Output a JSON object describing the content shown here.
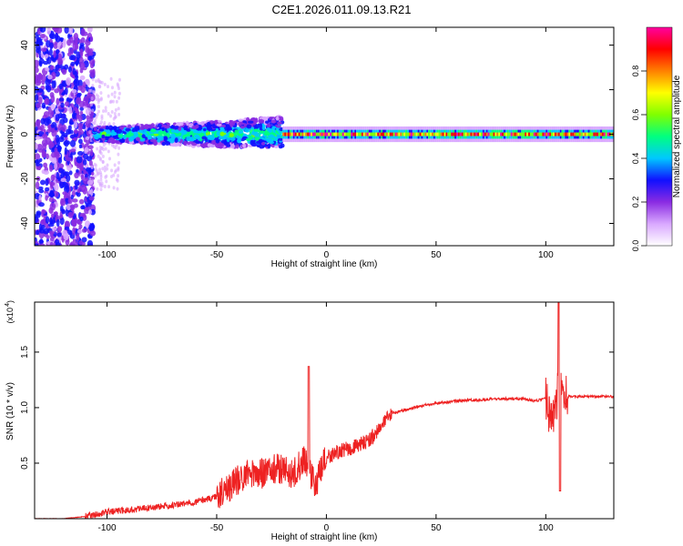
{
  "figure_title": "C2E1.2026.011.09.13.R21",
  "chart_data": [
    {
      "type": "heatmap",
      "title": "",
      "xlabel": "Height of straight line (km)",
      "ylabel": "Frequency (Hz)",
      "xlim": [
        -133,
        131
      ],
      "ylim": [
        -50,
        48
      ],
      "x_ticks": [
        -100,
        -50,
        0,
        50,
        100
      ],
      "y_ticks": [
        -40,
        -20,
        0,
        20,
        40
      ],
      "grid": false,
      "colorbar": {
        "label": "Normalized spectral amplitude",
        "range": [
          0,
          1
        ],
        "ticks": [
          "0.0",
          "0.2",
          "0.4",
          "0.6",
          "0.8"
        ],
        "colors": [
          "#ffffff",
          "#d9a8ff",
          "#8a2be2",
          "#1010ff",
          "#00c8ff",
          "#00ff80",
          "#80ff00",
          "#ffff00",
          "#ff8000",
          "#ff0000",
          "#ff00a0"
        ]
      },
      "regions": [
        {
          "x_range": [
            -133,
            -106
          ],
          "freq_range": [
            -50,
            48
          ],
          "amplitude": "low-moderate, scattered"
        },
        {
          "x_range": [
            -106,
            -20
          ],
          "freq_range": [
            -8,
            8
          ],
          "amplitude": "moderate-high, scattered"
        },
        {
          "x_range": [
            -20,
            131
          ],
          "freq_range": [
            -3,
            3
          ],
          "amplitude": "high, narrow band near 0 Hz"
        }
      ]
    },
    {
      "type": "line",
      "title": "",
      "xlabel": "Height of straight line (km)",
      "ylabel": "SNR (10 * v/v)",
      "yscale_label": "(x10",
      "yscale_exponent": "4",
      "xlim": [
        -133,
        131
      ],
      "ylim": [
        0,
        1.95
      ],
      "x_ticks": [
        -100,
        -50,
        0,
        50,
        100
      ],
      "y_ticks": [
        "0.5",
        "1.0",
        "1.5"
      ],
      "y_tick_values": [
        0.5,
        1.0,
        1.5
      ],
      "color": "#ee2222",
      "series": [
        {
          "x": [
            -133,
            -120,
            -110,
            -105,
            -100,
            -90,
            -80,
            -70,
            -60,
            -50,
            -45,
            -40,
            -35,
            -30,
            -25,
            -20,
            -15,
            -10,
            -5,
            0,
            5,
            10,
            15,
            20,
            25,
            30,
            40,
            50,
            60,
            70,
            80,
            90,
            95,
            100,
            103,
            106,
            108,
            110,
            115,
            120,
            131
          ],
          "y": [
            0.0,
            0.0,
            0.02,
            0.04,
            0.06,
            0.08,
            0.1,
            0.12,
            0.15,
            0.2,
            0.28,
            0.35,
            0.42,
            0.4,
            0.45,
            0.45,
            0.4,
            0.55,
            0.3,
            0.55,
            0.6,
            0.63,
            0.66,
            0.72,
            0.83,
            0.95,
            1.0,
            1.04,
            1.06,
            1.07,
            1.08,
            1.08,
            1.06,
            1.08,
            0.85,
            1.2,
            1.09,
            1.1,
            1.1,
            1.1,
            1.1
          ]
        }
      ],
      "notable_peaks": [
        {
          "x": -8,
          "y": 1.37
        },
        {
          "x": 106,
          "y": 1.95
        },
        {
          "x": 106.5,
          "y": 0.25
        }
      ]
    }
  ]
}
